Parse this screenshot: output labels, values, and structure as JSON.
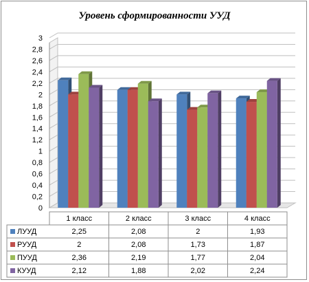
{
  "chart_data": {
    "type": "bar",
    "title": "Уровень сформированности УУД",
    "categories": [
      "1 класс",
      "2 класс",
      "3 класс",
      "4 класс"
    ],
    "series": [
      {
        "name": "ЛУУД",
        "values": [
          2.25,
          2.08,
          2,
          1.93
        ],
        "labels": [
          "2,25",
          "2,08",
          "2",
          "1,93"
        ],
        "color": "#4f81bd"
      },
      {
        "name": "РУУД",
        "values": [
          2,
          2.08,
          1.73,
          1.87
        ],
        "labels": [
          "2",
          "2,08",
          "1,73",
          "1,87"
        ],
        "color": "#c0504d"
      },
      {
        "name": "ПУУД",
        "values": [
          2.36,
          2.19,
          1.77,
          2.04
        ],
        "labels": [
          "2,36",
          "2,19",
          "1,77",
          "2,04"
        ],
        "color": "#9bbb59"
      },
      {
        "name": "КУУД",
        "values": [
          2.12,
          1.88,
          2.02,
          2.24
        ],
        "labels": [
          "2,12",
          "1,88",
          "2,02",
          "2,24"
        ],
        "color": "#8064a2"
      }
    ],
    "yticks": [
      "0",
      "0,2",
      "0,4",
      "0,6",
      "0,8",
      "1",
      "1,2",
      "1,4",
      "1,6",
      "1,8",
      "2",
      "2,2",
      "2,4",
      "2,6",
      "2,8",
      "3"
    ],
    "ylim": [
      0,
      3
    ],
    "grid": true,
    "legend": "data-table"
  }
}
